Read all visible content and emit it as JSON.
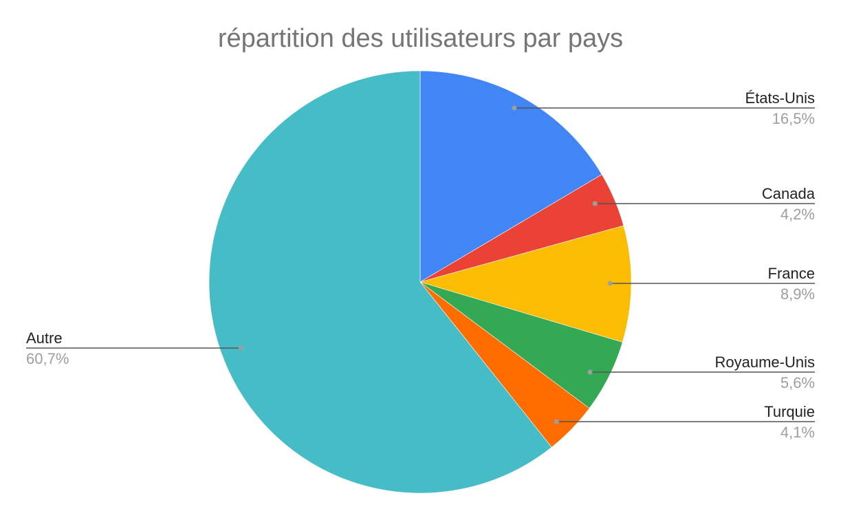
{
  "chart_data": {
    "type": "pie",
    "title": "répartition des utilisateurs par pays",
    "start_angle_deg": 0,
    "direction": "clockwise",
    "slices": [
      {
        "label": "États-Unis",
        "value": 16.5,
        "display": "16,5%",
        "color": "#4285F4"
      },
      {
        "label": "Canada",
        "value": 4.2,
        "display": "4,2%",
        "color": "#EA4335"
      },
      {
        "label": "France",
        "value": 8.9,
        "display": "8,9%",
        "color": "#FBBC04"
      },
      {
        "label": "Royaume-Unis",
        "value": 5.6,
        "display": "5,6%",
        "color": "#34A853"
      },
      {
        "label": "Turquie",
        "value": 4.1,
        "display": "4,1%",
        "color": "#FF6D01"
      },
      {
        "label": "Autre",
        "value": 60.7,
        "display": "60,7%",
        "color": "#46BDC6"
      }
    ],
    "legend": "none",
    "label_placement": "outside-with-leader-lines"
  }
}
